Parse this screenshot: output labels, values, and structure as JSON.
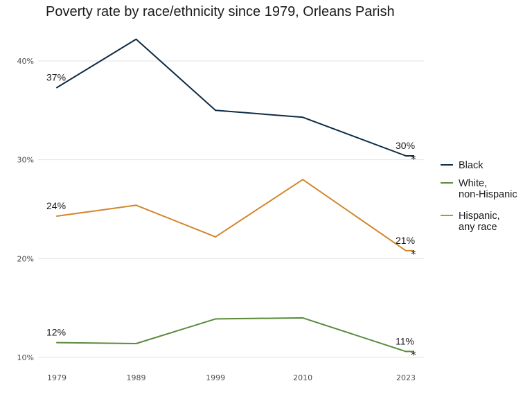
{
  "chart_data": {
    "type": "line",
    "title": "Poverty rate by race/ethnicity since 1979, Orleans Parish",
    "xlabel": "",
    "ylabel": "",
    "x": [
      1979,
      1989,
      1999,
      2010,
      2023
    ],
    "x_tick_labels": [
      "1979",
      "1989",
      "1999",
      "2010",
      "2023"
    ],
    "y_ticks": [
      0.1,
      0.2,
      0.3,
      0.4
    ],
    "y_tick_labels": [
      "10%",
      "20%",
      "30%",
      "40%"
    ],
    "ylim": [
      0.1,
      0.4
    ],
    "grid": "horizontal",
    "legend_position": "right",
    "footnote_marker": "*",
    "series": [
      {
        "name": "Black",
        "legend_lines": [
          "Black"
        ],
        "color": "#0d2b45",
        "values": [
          0.373,
          0.422,
          0.35,
          0.343,
          0.304
        ],
        "labels": {
          "start": "37%",
          "end": "30%"
        }
      },
      {
        "name": "White, non-Hispanic",
        "legend_lines": [
          "White,",
          "non-Hispanic"
        ],
        "color": "#5a8a3c",
        "values": [
          0.115,
          0.114,
          0.139,
          0.14,
          0.106
        ],
        "labels": {
          "start": "12%",
          "end": "11%"
        }
      },
      {
        "name": "Hispanic, any race",
        "legend_lines": [
          "Hispanic,",
          "any race"
        ],
        "color": "#d2862b",
        "values": [
          0.243,
          0.254,
          0.222,
          0.28,
          0.208
        ],
        "labels": {
          "start": "24%",
          "end": "21%"
        }
      }
    ]
  }
}
